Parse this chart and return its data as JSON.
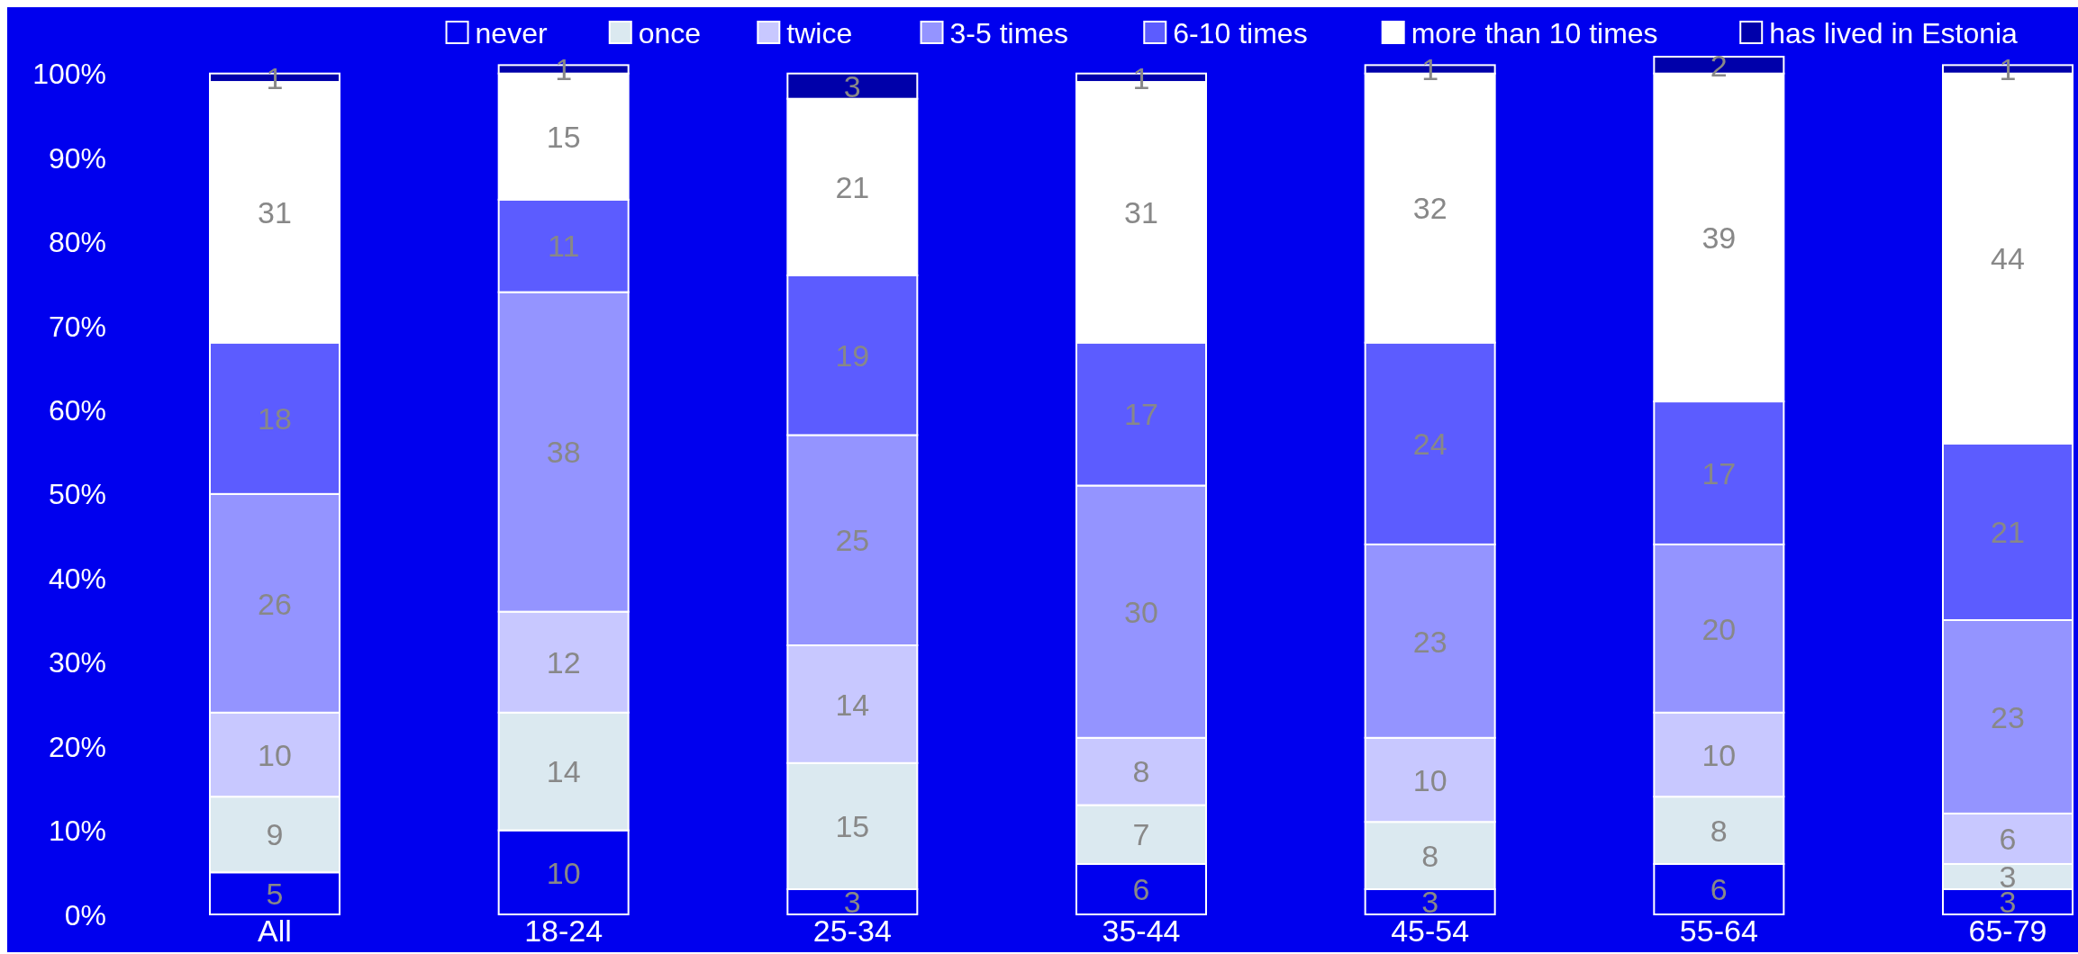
{
  "chart_data": {
    "type": "bar",
    "stacked": true,
    "categories": [
      "All",
      "18-24",
      "25-34",
      "35-44",
      "45-54",
      "55-64",
      "65-79"
    ],
    "series": [
      {
        "name": "never",
        "color": "#0000ee",
        "values": [
          5,
          10,
          3,
          6,
          3,
          6,
          3
        ]
      },
      {
        "name": "once",
        "color": "#dbe9f0",
        "values": [
          9,
          14,
          15,
          7,
          8,
          8,
          3
        ]
      },
      {
        "name": "twice",
        "color": "#c8c8ff",
        "values": [
          10,
          12,
          14,
          8,
          10,
          10,
          6
        ]
      },
      {
        "name": "3-5 times",
        "color": "#9494ff",
        "values": [
          26,
          38,
          25,
          30,
          23,
          20,
          23
        ]
      },
      {
        "name": "6-10 times",
        "color": "#5c5cff",
        "values": [
          18,
          11,
          19,
          17,
          24,
          17,
          21
        ]
      },
      {
        "name": "more than 10 times",
        "color": "#ffffff",
        "values": [
          31,
          15,
          21,
          31,
          32,
          39,
          44
        ]
      },
      {
        "name": "has lived in Estonia",
        "color": "#0000aa",
        "values": [
          1,
          1,
          3,
          1,
          1,
          2,
          1
        ]
      }
    ],
    "ylim": [
      0,
      102
    ],
    "yticks": [
      {
        "value": 0,
        "label": "0%"
      },
      {
        "value": 10,
        "label": "10%"
      },
      {
        "value": 20,
        "label": "20%"
      },
      {
        "value": 30,
        "label": "30%"
      },
      {
        "value": 40,
        "label": "40%"
      },
      {
        "value": 50,
        "label": "50%"
      },
      {
        "value": 60,
        "label": "60%"
      },
      {
        "value": 70,
        "label": "70%"
      },
      {
        "value": 80,
        "label": "80%"
      },
      {
        "value": 90,
        "label": "90%"
      },
      {
        "value": 100,
        "label": "100%"
      }
    ],
    "data_labels": true,
    "legend": "top",
    "grid": false
  }
}
